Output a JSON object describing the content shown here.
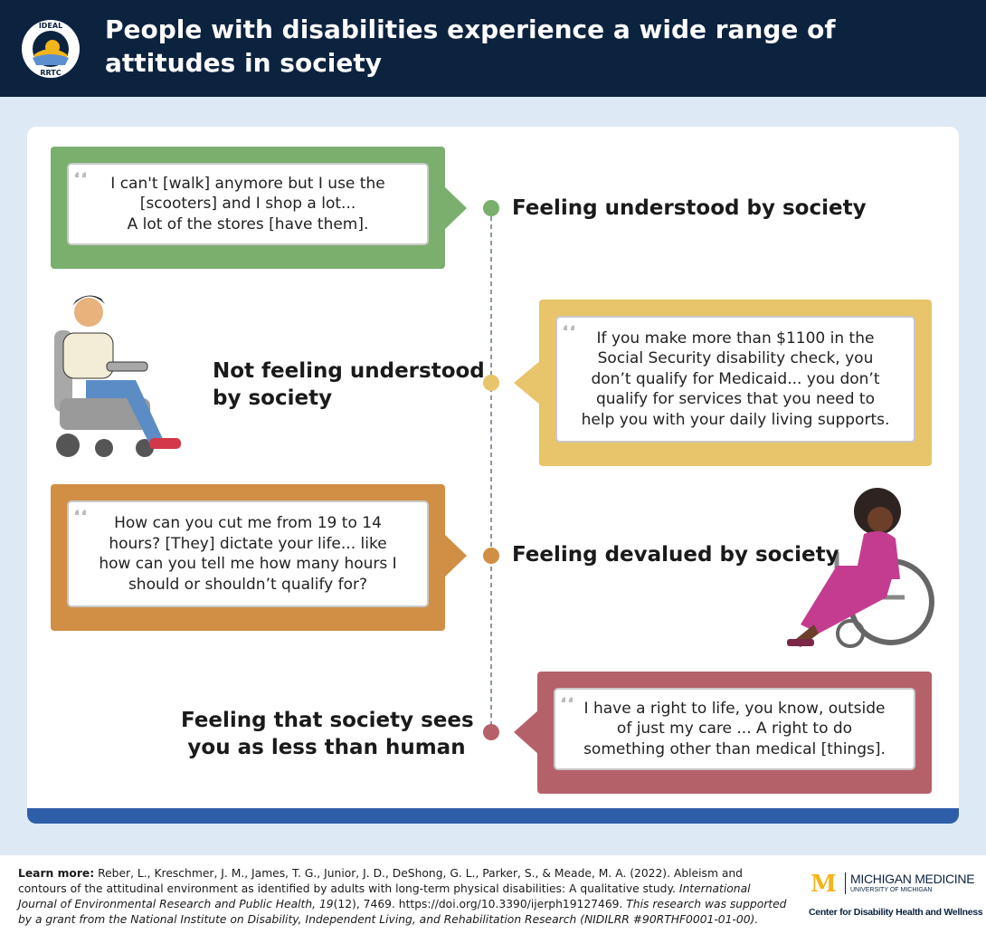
{
  "header": {
    "title": "People with disabilities experience a wide range of attitudes in society",
    "logo_top": "IDEAL",
    "logo_bottom": "RRTC"
  },
  "items": [
    {
      "label_lines": [
        "Feeling understood by society"
      ],
      "quote_lines": [
        "I can't [walk] anymore but I use the",
        "[scooters] and I shop a lot...",
        "A lot of the stores [have them]."
      ]
    },
    {
      "label_lines": [
        "Not feeling understood",
        "by society"
      ],
      "quote_lines": [
        "If you make more than $1100 in the",
        "Social Security disability check, you",
        "don’t qualify for Medicaid... you don’t",
        "qualify for services that you need to",
        "help you with your daily living supports."
      ]
    },
    {
      "label_lines": [
        "Feeling devalued by society"
      ],
      "quote_lines": [
        "How can you cut me from 19 to 14",
        "hours? [They] dictate your life... like",
        "how can you tell me how many hours I",
        "should or shouldn’t qualify for?"
      ]
    },
    {
      "label_lines": [
        "Feeling that society sees",
        "you as less than human"
      ],
      "quote_lines": [
        "I have a right to life, you know, outside",
        "of just my care ... A right to do",
        "something other than medical [things]."
      ]
    }
  ],
  "footer": {
    "learn_more": "Learn more:",
    "citation": "Reber, L., Kreschmer, J. M., James, T. G., Junior, J. D., DeShong, G. L., Parker, S., & Meade, M. A. (2022). Ableism and contours of the attitudinal environment as identified by adults with long-term physical disabilities: A qualitative study.",
    "journal": "International Journal of Environmental Research and Public Health, 19",
    "doi": "(12), 7469. https://doi.org/10.3390/ijerph19127469.",
    "funding": "This research was supported by a grant from the National Institute on Disability, Independent Living, and Rehabilitation Research (NIDILRR #90RTHF0001-01-00).",
    "logo_mark": "M",
    "logo_name": "MICHIGAN MEDICINE",
    "logo_sub": "UNIVERSITY OF MICHIGAN",
    "center": "Center for Disability Health and Wellness"
  }
}
